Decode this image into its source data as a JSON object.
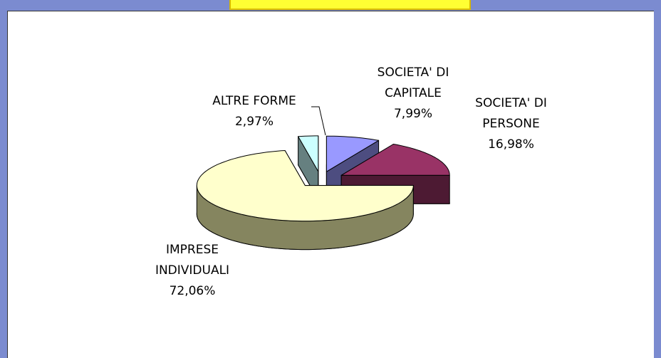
{
  "chart_data": {
    "type": "pie",
    "categories": [
      "SOCIETA' DI CAPITALE",
      "SOCIETA' DI PERSONE",
      "IMPRESE INDIVIDUALI",
      "ALTRE FORME"
    ],
    "values": [
      7.99,
      16.98,
      72.06,
      2.97
    ],
    "value_labels": [
      "7,99%",
      "16,98%",
      "72,06%",
      "2,97%"
    ],
    "colors": [
      "#9999ff",
      "#993366",
      "#ffffcc",
      "#ccffff"
    ],
    "side_colors": [
      "#4d4d80",
      "#4d1a33",
      "#85855f",
      "#668080"
    ]
  }
}
